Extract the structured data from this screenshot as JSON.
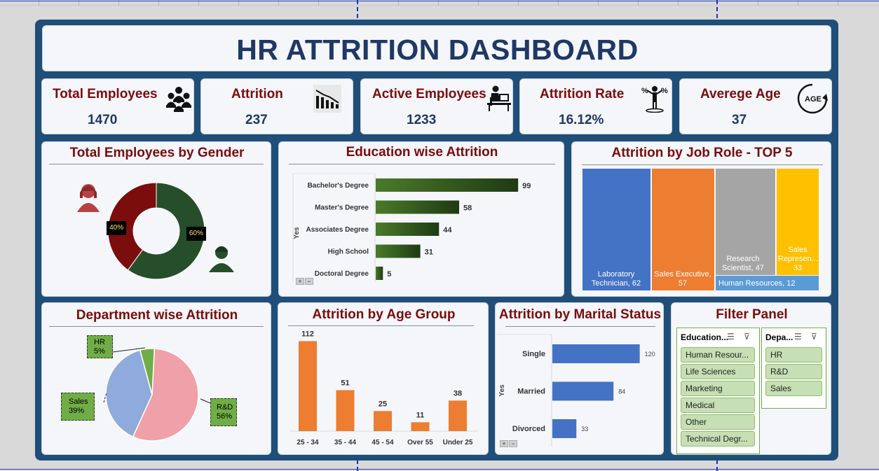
{
  "dashboard": {
    "title": "HR ATTRITION DASHBOARD"
  },
  "kpis": [
    {
      "label": "Total Employees",
      "value": "1470",
      "icon": "people-group-icon"
    },
    {
      "label": "Attrition",
      "value": "237",
      "icon": "declining-people-icon"
    },
    {
      "label": "Active Employees",
      "value": "1233",
      "icon": "person-at-desk-icon"
    },
    {
      "label": "Attrition Rate",
      "value": "16.12%",
      "icon": "person-percent-icon"
    },
    {
      "label": "Averege Age",
      "value": "37",
      "icon": "age-cycle-icon"
    }
  ],
  "colors": {
    "frame": "#1f4e79",
    "title_text": "#1f3864",
    "card_title": "#7a0c0c",
    "female": "#7b0d0d",
    "male": "#274e2a",
    "edu_bar": "#375623",
    "age_bar": "#ed7d31",
    "marital_bar": "#4472c4",
    "slicer_item": "#c6dfb4"
  },
  "chart_data": [
    {
      "id": "gender",
      "type": "pie",
      "donut": true,
      "title": "Total Employees by Gender",
      "slices": [
        {
          "label": "Female",
          "value": 40,
          "display": "40%",
          "color": "#7b0d0d"
        },
        {
          "label": "Male",
          "value": 60,
          "display": "60%",
          "color": "#274e2a"
        }
      ]
    },
    {
      "id": "education",
      "type": "bar",
      "orientation": "horizontal",
      "title": "Education wise Attrition",
      "ylabel": "Yes",
      "categories": [
        "Bachelor's Degree",
        "Master's Degree",
        "Associates Degree",
        "High School",
        "Doctoral Degree"
      ],
      "values": [
        99,
        58,
        44,
        31,
        5
      ],
      "xlim": [
        0,
        115
      ]
    },
    {
      "id": "jobrole",
      "type": "treemap",
      "title": "Attrition by Job Role - TOP 5",
      "items": [
        {
          "label": "Laboratory Technician, 62",
          "value": 62,
          "color": "#4472c4"
        },
        {
          "label": "Sales Executive, 57",
          "value": 57,
          "color": "#ed7d31"
        },
        {
          "label": "Research Scientist, 47",
          "value": 47,
          "color": "#a5a5a5"
        },
        {
          "label": "Sales Represen... 33",
          "value": 33,
          "color": "#ffc000"
        },
        {
          "label": "Human Resources, 12",
          "value": 12,
          "color": "#5b9bd5"
        }
      ]
    },
    {
      "id": "department",
      "type": "pie",
      "title": "Department wise Attrition",
      "slices": [
        {
          "label": "R&D",
          "value": 56,
          "display": "56%",
          "color": "#f0a0a8"
        },
        {
          "label": "Sales",
          "value": 39,
          "display": "39%",
          "color": "#8faadc"
        },
        {
          "label": "HR",
          "value": 5,
          "display": "5%",
          "color": "#70ad47"
        }
      ]
    },
    {
      "id": "agegroup",
      "type": "bar",
      "orientation": "vertical",
      "title": "Attrition by Age Group",
      "categories": [
        "25 - 34",
        "35 - 44",
        "45 - 54",
        "Over 55",
        "Under 25"
      ],
      "values": [
        112,
        51,
        25,
        11,
        38
      ],
      "ylim": [
        0,
        115
      ]
    },
    {
      "id": "marital",
      "type": "bar",
      "orientation": "horizontal",
      "title": "Attrition by Marital Status",
      "ylabel": "Yes",
      "categories": [
        "Single",
        "Married",
        "Divorced"
      ],
      "values": [
        120,
        84,
        33
      ],
      "xlim": [
        0,
        130
      ]
    }
  ],
  "filter_panel": {
    "title": "Filter Panel",
    "slicers": [
      {
        "header": "Education...",
        "items": [
          "Human Resour...",
          "Life Sciences",
          "Marketing",
          "Medical",
          "Other",
          "Technical Degr..."
        ]
      },
      {
        "header": "Depa...",
        "items": [
          "HR",
          "R&D",
          "Sales"
        ]
      }
    ]
  },
  "chart_controls": {
    "expand": "+",
    "collapse": "−"
  }
}
